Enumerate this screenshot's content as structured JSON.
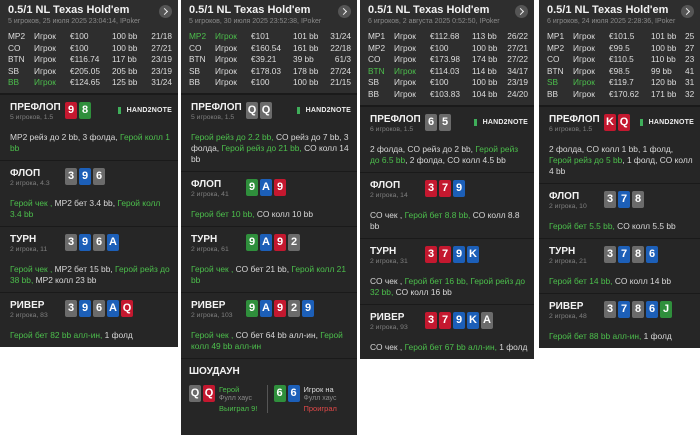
{
  "panels": [
    {
      "title": "0.5/1 NL Texas Hold'em",
      "subtitle": "5 игроков, 25 июля 2025 23:04:14, IPoker",
      "players": [
        {
          "pos": "MP2",
          "name": "Игрок",
          "stack": "€100",
          "bb": "100 bb",
          "stats": "21/18"
        },
        {
          "pos": "CO",
          "name": "Игрок",
          "stack": "€100",
          "bb": "100 bb",
          "stats": "27/21"
        },
        {
          "pos": "BTN",
          "name": "Игрок",
          "stack": "€116.74",
          "bb": "117 bb",
          "stats": "23/19"
        },
        {
          "pos": "SB",
          "name": "Игрок",
          "stack": "€205.05",
          "bb": "205 bb",
          "stats": "23/19"
        },
        {
          "pos": "BB",
          "name": "Игрок",
          "stack": "€124.65",
          "bb": "125 bb",
          "stats": "31/24",
          "hero": true
        }
      ],
      "streets": [
        {
          "name": "ПРЕФЛОП",
          "info": "5 игроков, 1.5",
          "cards": [
            {
              "rank": "9",
              "color": "red"
            },
            {
              "rank": "8",
              "color": "green"
            }
          ],
          "logo": "HAND2NOTE",
          "actions": [
            {
              "text": "MP2 рейз до 2 bb, 3 фолда, "
            },
            {
              "text": "Герой колл 1 bb",
              "hero": true
            }
          ]
        },
        {
          "name": "ФЛОП",
          "info": "2 игрока, 4.3",
          "cards": [
            {
              "rank": "3",
              "color": "grey"
            },
            {
              "rank": "9",
              "color": "blue"
            },
            {
              "rank": "6",
              "color": "grey"
            }
          ],
          "actions": [
            {
              "text": "Герой чек , ",
              "hero": true
            },
            {
              "text": "MP2 бет 3.4 bb, "
            },
            {
              "text": "Герой колл 3.4 bb",
              "hero": true
            }
          ]
        },
        {
          "name": "ТУРН",
          "info": "2 игрока, 11",
          "cards": [
            {
              "rank": "3",
              "color": "grey"
            },
            {
              "rank": "9",
              "color": "blue"
            },
            {
              "rank": "6",
              "color": "grey"
            },
            {
              "rank": "A",
              "color": "blue"
            }
          ],
          "actions": [
            {
              "text": "Герой чек , ",
              "hero": true
            },
            {
              "text": "MP2 бет 15 bb, "
            },
            {
              "text": "Герой рейз до 38 bb, ",
              "hero": true
            },
            {
              "text": "MP2 колл 23 bb"
            }
          ]
        },
        {
          "name": "РИВЕР",
          "info": "2 игрока, 83",
          "cards": [
            {
              "rank": "3",
              "color": "grey"
            },
            {
              "rank": "9",
              "color": "blue"
            },
            {
              "rank": "6",
              "color": "grey"
            },
            {
              "rank": "A",
              "color": "blue"
            },
            {
              "rank": "Q",
              "color": "red"
            }
          ],
          "actions": [
            {
              "text": "Герой бет 82 bb алл-ин, ",
              "hero": true
            },
            {
              "text": "1 фолд"
            }
          ]
        }
      ]
    },
    {
      "title": "0.5/1 NL Texas Hold'em",
      "subtitle": "5 игроков, 30 июля 2025 23:52:38, IPoker",
      "players": [
        {
          "pos": "MP2",
          "name": "Игрок",
          "stack": "€101",
          "bb": "101 bb",
          "stats": "31/24",
          "hero": true
        },
        {
          "pos": "CO",
          "name": "Игрок",
          "stack": "€160.54",
          "bb": "161 bb",
          "stats": "22/18"
        },
        {
          "pos": "BTN",
          "name": "Игрок",
          "stack": "€39.21",
          "bb": "39 bb",
          "stats": "61/3"
        },
        {
          "pos": "SB",
          "name": "Игрок",
          "stack": "€178.03",
          "bb": "178 bb",
          "stats": "27/24"
        },
        {
          "pos": "BB",
          "name": "Игрок",
          "stack": "€100",
          "bb": "100 bb",
          "stats": "21/15"
        }
      ],
      "streets": [
        {
          "name": "ПРЕФЛОП",
          "info": "5 игроков, 1.5",
          "cards": [
            {
              "rank": "Q",
              "color": "grey"
            },
            {
              "rank": "Q",
              "color": "grey"
            }
          ],
          "logo": "HAND2NOTE",
          "actions": [
            {
              "text": "Герой рейз до 2.2 bb, ",
              "hero": true
            },
            {
              "text": "CO рейз до 7 bb, 3 фолда, "
            },
            {
              "text": "Герой рейз до 21 bb, ",
              "hero": true
            },
            {
              "text": "CO колл 14 bb"
            }
          ]
        },
        {
          "name": "ФЛОП",
          "info": "2 игрока, 41",
          "cards": [
            {
              "rank": "9",
              "color": "green"
            },
            {
              "rank": "A",
              "color": "blue"
            },
            {
              "rank": "9",
              "color": "red"
            }
          ],
          "actions": [
            {
              "text": "Герой бет 10 bb, ",
              "hero": true
            },
            {
              "text": "CO колл 10 bb"
            }
          ]
        },
        {
          "name": "ТУРН",
          "info": "2 игрока, 61",
          "cards": [
            {
              "rank": "9",
              "color": "green"
            },
            {
              "rank": "A",
              "color": "blue"
            },
            {
              "rank": "9",
              "color": "red"
            },
            {
              "rank": "2",
              "color": "grey"
            }
          ],
          "actions": [
            {
              "text": "Герой чек , ",
              "hero": true
            },
            {
              "text": "CO бет 21 bb, "
            },
            {
              "text": "Герой колл 21 bb",
              "hero": true
            }
          ]
        },
        {
          "name": "РИВЕР",
          "info": "2 игрока, 103",
          "cards": [
            {
              "rank": "9",
              "color": "green"
            },
            {
              "rank": "A",
              "color": "blue"
            },
            {
              "rank": "9",
              "color": "red"
            },
            {
              "rank": "2",
              "color": "grey"
            },
            {
              "rank": "9",
              "color": "blue"
            }
          ],
          "actions": [
            {
              "text": "Герой чек , ",
              "hero": true
            },
            {
              "text": "CO бет 64 bb алл-ин, "
            },
            {
              "text": "Герой колл 49 bb алл-ин",
              "hero": true
            }
          ]
        }
      ],
      "showdown": {
        "title": "ШОУДАУН",
        "hands": [
          {
            "cards": [
              {
                "rank": "Q",
                "color": "grey"
              },
              {
                "rank": "Q",
                "color": "red"
              }
            ],
            "name": "Герой",
            "combo": "Фулл хаус",
            "result": "Выиграл 9!",
            "won": true
          },
          {
            "cards": [
              {
                "rank": "6",
                "color": "green"
              },
              {
                "rank": "6",
                "color": "blue"
              }
            ],
            "name": "Игрок на",
            "combo": "Фулл хаус",
            "result": "Проиграл",
            "won": false
          }
        ]
      }
    },
    {
      "title": "0.5/1 NL Texas Hold'em",
      "subtitle": "6 игроков, 2 августа 2025 0:52:50, IPoker",
      "players": [
        {
          "pos": "MP1",
          "name": "Игрок",
          "stack": "€112.68",
          "bb": "113 bb",
          "stats": "26/22"
        },
        {
          "pos": "MP2",
          "name": "Игрок",
          "stack": "€100",
          "bb": "100 bb",
          "stats": "27/21"
        },
        {
          "pos": "CO",
          "name": "Игрок",
          "stack": "€173.98",
          "bb": "174 bb",
          "stats": "27/22"
        },
        {
          "pos": "BTN",
          "name": "Игрок",
          "stack": "€114.03",
          "bb": "114 bb",
          "stats": "34/17",
          "hero": true
        },
        {
          "pos": "SB",
          "name": "Игрок",
          "stack": "€100",
          "bb": "100 bb",
          "stats": "23/19"
        },
        {
          "pos": "BB",
          "name": "Игрок",
          "stack": "€103.83",
          "bb": "104 bb",
          "stats": "24/20"
        }
      ],
      "streets": [
        {
          "name": "ПРЕФЛОП",
          "info": "6 игроков, 1.5",
          "cards": [
            {
              "rank": "6",
              "color": "grey"
            },
            {
              "rank": "5",
              "color": "grey"
            }
          ],
          "logo": "HAND2NOTE",
          "actions": [
            {
              "text": "2 фолда, CO рейз до 2 bb, "
            },
            {
              "text": "Герой рейз до 6.5 bb",
              "hero": true
            },
            {
              "text": ", 2 фолда, CO колл 4.5 bb"
            }
          ]
        },
        {
          "name": "ФЛОП",
          "info": "2 игрока, 14",
          "cards": [
            {
              "rank": "3",
              "color": "red"
            },
            {
              "rank": "7",
              "color": "red"
            },
            {
              "rank": "9",
              "color": "blue"
            }
          ],
          "actions": [
            {
              "text": "CO чек , "
            },
            {
              "text": "Герой бет 8.8 bb, ",
              "hero": true
            },
            {
              "text": "CO колл 8.8 bb"
            }
          ]
        },
        {
          "name": "ТУРН",
          "info": "2 игрока, 31",
          "cards": [
            {
              "rank": "3",
              "color": "red"
            },
            {
              "rank": "7",
              "color": "red"
            },
            {
              "rank": "9",
              "color": "blue"
            },
            {
              "rank": "K",
              "color": "blue"
            }
          ],
          "actions": [
            {
              "text": "CO чек , "
            },
            {
              "text": "Герой бет 16 bb, ",
              "hero": true
            },
            {
              "text": "Герой рейз до 32 bb, ",
              "hero": true
            },
            {
              "text": "CO колл 16 bb"
            }
          ]
        },
        {
          "name": "РИВЕР",
          "info": "2 игрока, 93",
          "cards": [
            {
              "rank": "3",
              "color": "red"
            },
            {
              "rank": "7",
              "color": "red"
            },
            {
              "rank": "9",
              "color": "blue"
            },
            {
              "rank": "K",
              "color": "blue"
            },
            {
              "rank": "A",
              "color": "grey"
            }
          ],
          "actions": [
            {
              "text": "CO чек , "
            },
            {
              "text": "Герой бет 67 bb алл-ин, ",
              "hero": true
            },
            {
              "text": "1 фолд"
            }
          ]
        }
      ]
    },
    {
      "title": "0.5/1 NL Texas Hold'em",
      "subtitle": "6 игроков, 24 июля 2025 2:28:36, IPoker",
      "players": [
        {
          "pos": "MP1",
          "name": "Игрок",
          "stack": "€101.5",
          "bb": "101 bb",
          "stats": "25/21"
        },
        {
          "pos": "MP2",
          "name": "Игрок",
          "stack": "€99.5",
          "bb": "100 bb",
          "stats": "27/21"
        },
        {
          "pos": "CO",
          "name": "Игрок",
          "stack": "€110.5",
          "bb": "110 bb",
          "stats": "23/13"
        },
        {
          "pos": "BTN",
          "name": "Игрок",
          "stack": "€98.5",
          "bb": "99 bb",
          "stats": "41/23"
        },
        {
          "pos": "SB",
          "name": "Игрок",
          "stack": "€119.7",
          "bb": "120 bb",
          "stats": "31/24",
          "hero": true
        },
        {
          "pos": "BB",
          "name": "Игрок",
          "stack": "€170.62",
          "bb": "171 bb",
          "stats": "32/25"
        }
      ],
      "streets": [
        {
          "name": "ПРЕФЛОП",
          "info": "6 игроков, 1.5",
          "cards": [
            {
              "rank": "K",
              "color": "red"
            },
            {
              "rank": "Q",
              "color": "red"
            }
          ],
          "logo": "HAND2NOTE",
          "actions": [
            {
              "text": "2 фолда, CO колл 1 bb, 1 фолд, "
            },
            {
              "text": "Герой рейз до 5 bb",
              "hero": true
            },
            {
              "text": ", 1 фолд, CO колл 4 bb"
            }
          ]
        },
        {
          "name": "ФЛОП",
          "info": "2 игрока, 10",
          "cards": [
            {
              "rank": "3",
              "color": "grey"
            },
            {
              "rank": "7",
              "color": "blue"
            },
            {
              "rank": "8",
              "color": "grey"
            }
          ],
          "actions": [
            {
              "text": "Герой бет 5.5 bb, ",
              "hero": true
            },
            {
              "text": "CO колл 5.5 bb"
            }
          ]
        },
        {
          "name": "ТУРН",
          "info": "2 игрока, 21",
          "cards": [
            {
              "rank": "3",
              "color": "grey"
            },
            {
              "rank": "7",
              "color": "blue"
            },
            {
              "rank": "8",
              "color": "grey"
            },
            {
              "rank": "6",
              "color": "blue"
            }
          ],
          "actions": [
            {
              "text": "Герой бет 14 bb, ",
              "hero": true
            },
            {
              "text": "CO колл 14 bb"
            }
          ]
        },
        {
          "name": "РИВЕР",
          "info": "2 игрока, 48",
          "cards": [
            {
              "rank": "3",
              "color": "grey"
            },
            {
              "rank": "7",
              "color": "blue"
            },
            {
              "rank": "8",
              "color": "grey"
            },
            {
              "rank": "6",
              "color": "blue"
            },
            {
              "rank": "J",
              "color": "green"
            }
          ],
          "actions": [
            {
              "text": "Герой бет 88 bb алл-ин, ",
              "hero": true
            },
            {
              "text": "1 фолд"
            }
          ]
        }
      ]
    }
  ]
}
